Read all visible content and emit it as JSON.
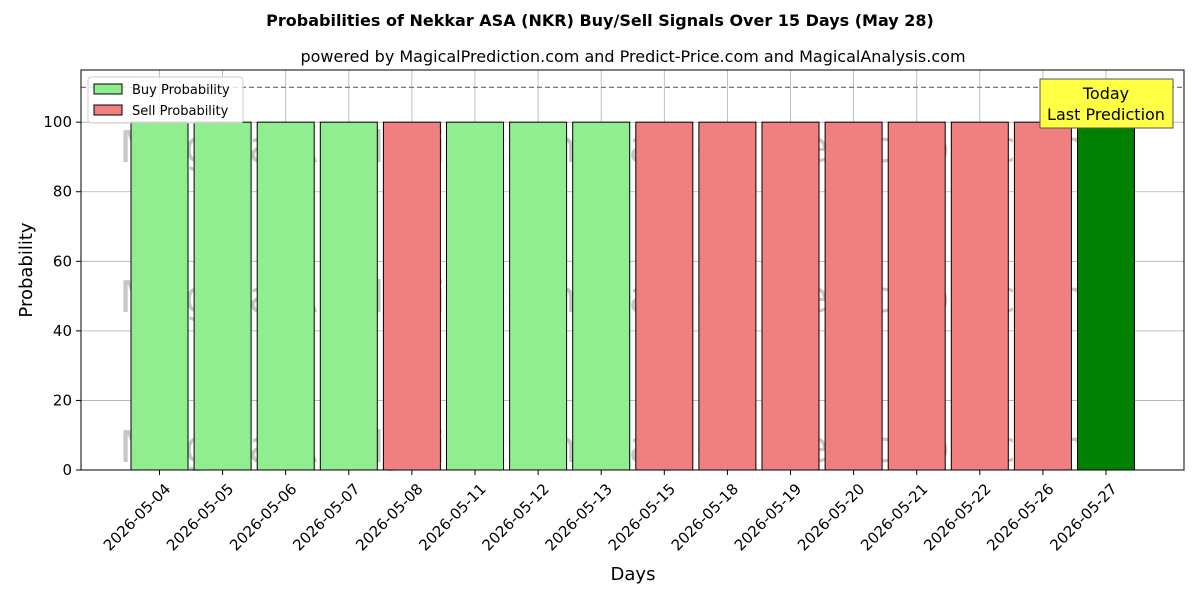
{
  "chart_data": {
    "type": "bar",
    "title": "Probabilities of Nekkar ASA (NKR) Buy/Sell Signals Over 15 Days (May 28)",
    "subtitle": "powered by MagicalPrediction.com and Predict-Price.com and MagicalAnalysis.com",
    "xlabel": "Days",
    "ylabel": "Probability",
    "ylim": [
      0,
      115
    ],
    "yticks": [
      0,
      20,
      40,
      60,
      80,
      100
    ],
    "grid": true,
    "legend_position": "top-left",
    "reference_line": 110,
    "categories": [
      "2026-05-04",
      "2026-05-05",
      "2026-05-06",
      "2026-05-07",
      "2026-05-08",
      "2026-05-11",
      "2026-05-12",
      "2026-05-13",
      "2026-05-15",
      "2026-05-18",
      "2026-05-19",
      "2026-05-20",
      "2026-05-21",
      "2026-05-22",
      "2026-05-26",
      "2026-05-27"
    ],
    "values": [
      100,
      100,
      100,
      100,
      100,
      100,
      100,
      100,
      100,
      100,
      100,
      100,
      100,
      100,
      100,
      100
    ],
    "signals": [
      "buy",
      "buy",
      "buy",
      "buy",
      "sell",
      "buy",
      "buy",
      "buy",
      "sell",
      "sell",
      "sell",
      "sell",
      "sell",
      "sell",
      "sell",
      "today"
    ],
    "series": [
      {
        "name": "Buy Probability",
        "color": "#90ee90"
      },
      {
        "name": "Sell Probability",
        "color": "#f08080"
      }
    ],
    "today_color": "#008000",
    "annotation": {
      "line1": "Today",
      "line2": "Last Prediction",
      "color": "#ffff44"
    },
    "watermarks": [
      "MagicalAnalysis.com",
      "MagicalPrediction.com"
    ]
  }
}
